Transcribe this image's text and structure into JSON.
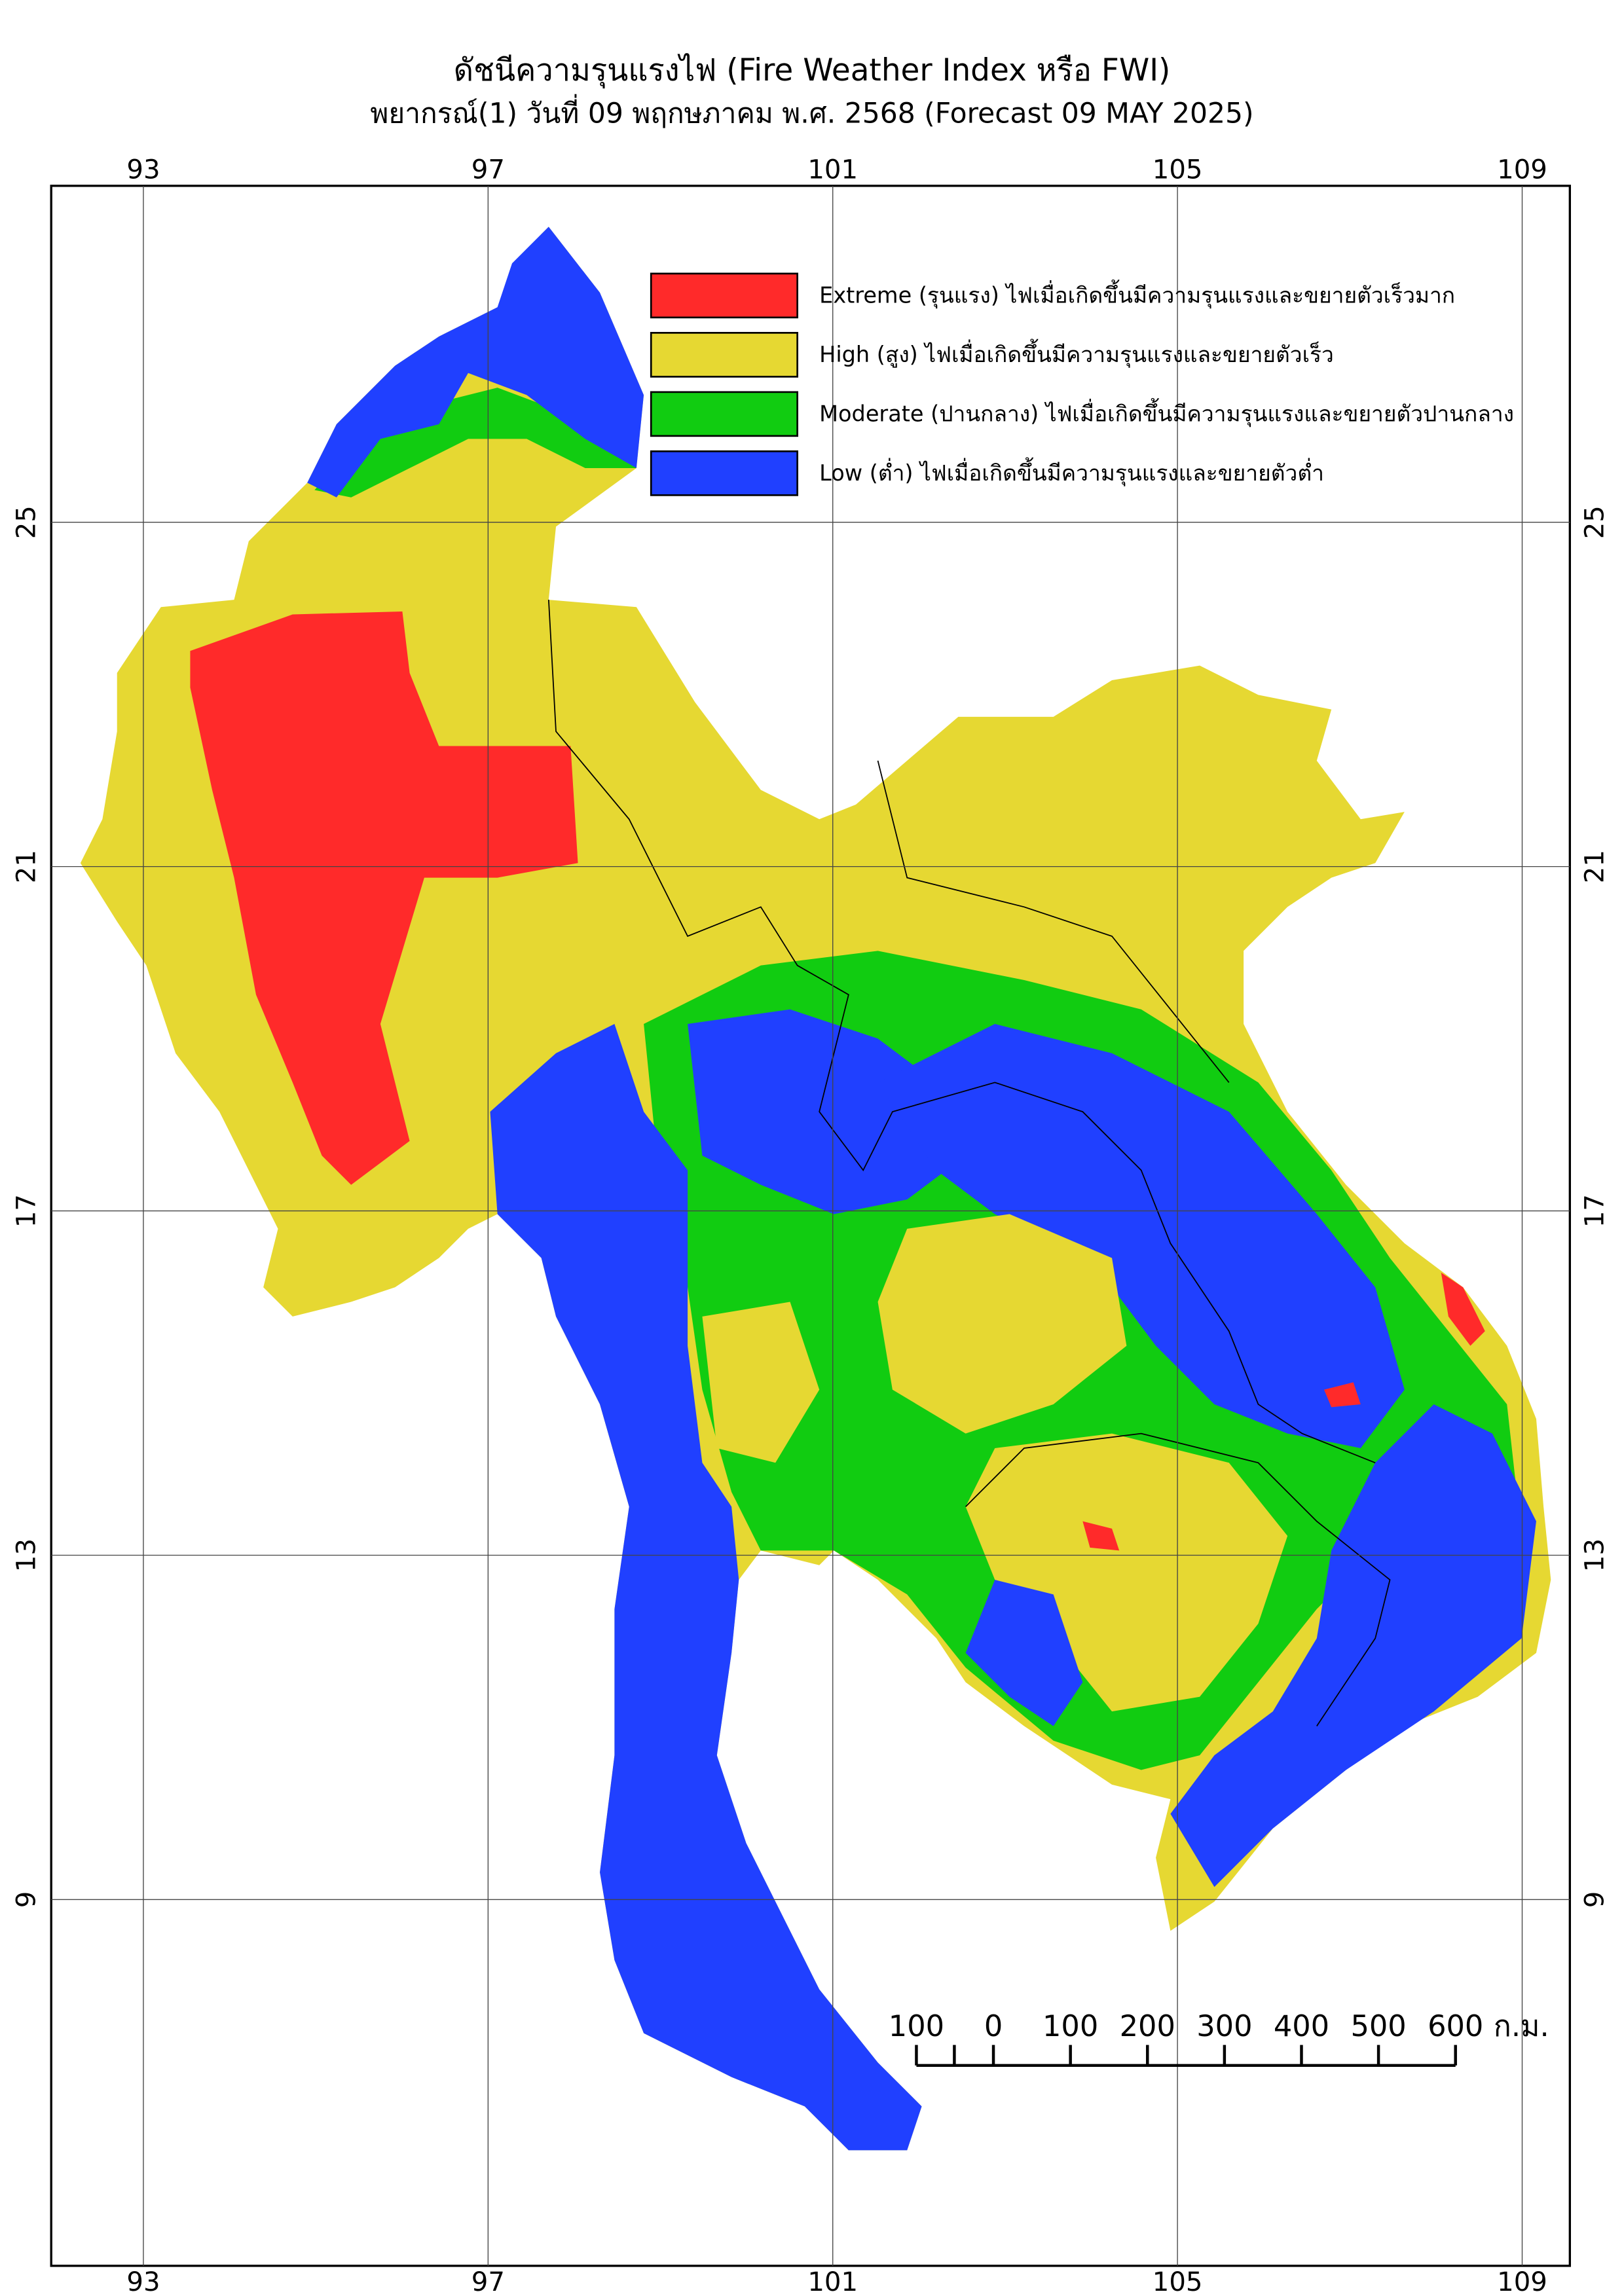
{
  "header": {
    "title": "ดัชนีความรุนแรงไฟ (Fire Weather Index หรือ FWI)",
    "subtitle": "พยากรณ์(1) วันที่ 09 พฤกษภาคม พ.ศ. 2568 (Forecast 09 MAY 2025)"
  },
  "map": {
    "lon_ticks": [
      93,
      97,
      101,
      105,
      109
    ],
    "lat_ticks": [
      25,
      21,
      17,
      13,
      9
    ]
  },
  "legend": [
    {
      "label": "Extreme (รุนแรง) ไฟเมื่อเกิดขึ้นมีความรุนแรงและขยายตัวเร็วมาก",
      "color": "#ff2a2a"
    },
    {
      "label": "High (สูง) ไฟเมื่อเกิดขึ้นมีความรุนแรงและขยายตัวเร็ว",
      "color": "#e6d832"
    },
    {
      "label": "Moderate (ปานกลาง) ไฟเมื่อเกิดขึ้นมีความรุนแรงและขยายตัวปานกลาง",
      "color": "#11cc11"
    },
    {
      "label": "Low (ต่ำ) ไฟเมื่อเกิดขึ้นมีความรุนแรงและขยายตัวต่ำ",
      "color": "#2040ff"
    }
  ],
  "scale_bar": {
    "ticks": [
      {
        "value": -100,
        "label": "100"
      },
      0,
      100,
      200,
      300,
      400,
      500,
      600
    ],
    "unit": "ก.ม."
  }
}
